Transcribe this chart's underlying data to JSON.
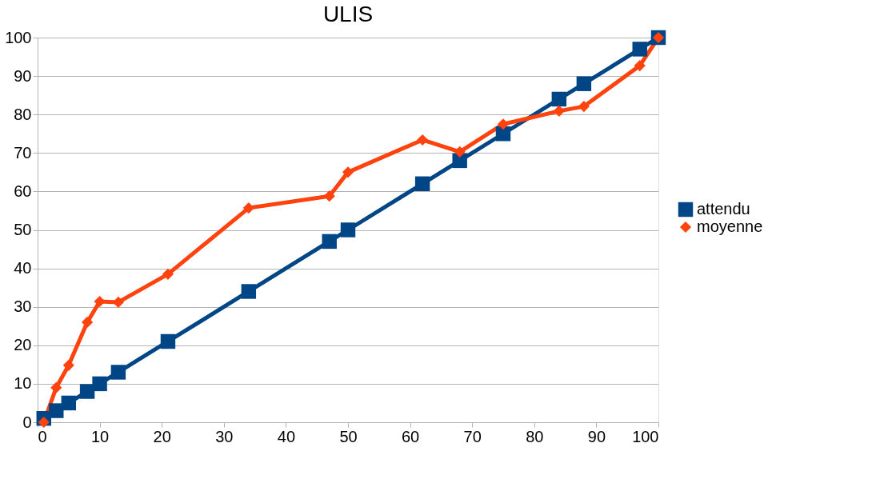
{
  "chart_data": {
    "type": "line",
    "title": "ULIS",
    "x": [
      1,
      3,
      5,
      8,
      10,
      13,
      21,
      34,
      47,
      50,
      62,
      68,
      75,
      84,
      88,
      97,
      100
    ],
    "series": [
      {
        "name": "attendu",
        "color": "#004586",
        "marker": "square",
        "values": [
          1,
          3,
          5,
          8,
          10,
          13,
          21,
          34,
          47,
          50,
          62,
          68,
          75,
          84,
          88,
          97,
          100
        ]
      },
      {
        "name": "moyenne",
        "color": "#ff420e",
        "marker": "diamond",
        "values": [
          0,
          9,
          14.8,
          26,
          31.4,
          31.2,
          38.5,
          55.7,
          58.8,
          65,
          73.4,
          70.3,
          77.5,
          80.9,
          82.1,
          92.7,
          100
        ]
      }
    ],
    "xlim": [
      0,
      100
    ],
    "xticks": [
      0,
      10,
      20,
      30,
      40,
      50,
      60,
      70,
      80,
      90,
      100
    ],
    "ylim": [
      0,
      100
    ],
    "yticks": [
      0,
      10,
      20,
      30,
      40,
      50,
      60,
      70,
      80,
      90,
      100
    ],
    "grid": "y",
    "legend": "right",
    "line_style": "solid"
  }
}
